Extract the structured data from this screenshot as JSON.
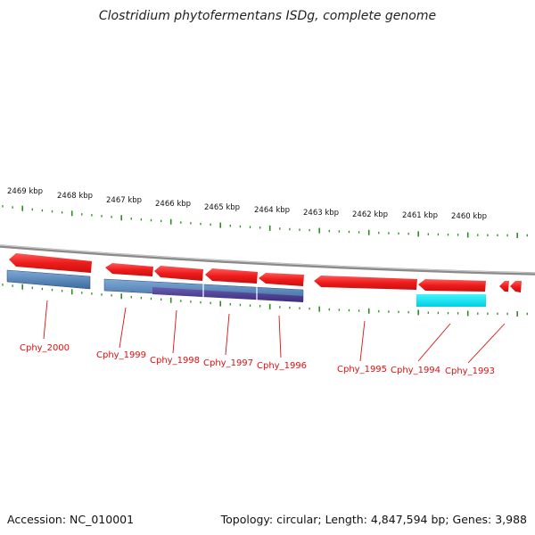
{
  "title": "Clostridium phytofermentans ISDg, complete genome",
  "footer": {
    "accession": "Accession: NC_010001",
    "summary": "Topology: circular; Length: 4,847,594 bp; Genes: 3,988"
  },
  "colors": {
    "gene_arrow": "#ee1c1c",
    "bar_blue": "#4f7fb4",
    "bar_purple": "#4a3c8c",
    "bar_cyan": "#00e0f0",
    "tick_green": "#2e8b22",
    "backbone": "#888888",
    "label_red": "#dd1111"
  },
  "scale": {
    "kbp_labels": [
      "2469 kbp",
      "2468 kbp",
      "2467 kbp",
      "2466 kbp",
      "2465 kbp",
      "2464 kbp",
      "2463 kbp",
      "2462 kbp",
      "2461 kbp",
      "2460 kbp"
    ]
  },
  "genes": {
    "labels": [
      "Cphy_2000",
      "Cphy_1999",
      "Cphy_1998",
      "Cphy_1997",
      "Cphy_1996",
      "Cphy_1995",
      "Cphy_1994",
      "Cphy_1993"
    ]
  }
}
